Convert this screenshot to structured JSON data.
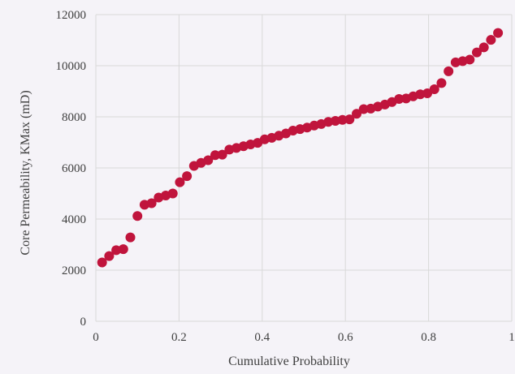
{
  "chart_data": {
    "type": "scatter",
    "title": "",
    "xlabel": "Cumulative Probability",
    "ylabel": "Core Permeability, KMax (mD)",
    "xlim": [
      0,
      1
    ],
    "ylim": [
      0,
      12000
    ],
    "x_ticks": [
      "0",
      "0.2",
      "0.4",
      "0.6",
      "0.8",
      "1"
    ],
    "y_ticks": [
      "0",
      "2000",
      "4000",
      "6000",
      "8000",
      "10000",
      "12000"
    ],
    "grid": true,
    "legend": "none",
    "marker_color": "#c0143c",
    "x": [
      0.015,
      0.032,
      0.049,
      0.066,
      0.083,
      0.1,
      0.117,
      0.134,
      0.151,
      0.168,
      0.185,
      0.202,
      0.219,
      0.236,
      0.253,
      0.27,
      0.287,
      0.304,
      0.321,
      0.338,
      0.355,
      0.372,
      0.389,
      0.406,
      0.423,
      0.44,
      0.457,
      0.474,
      0.491,
      0.508,
      0.525,
      0.542,
      0.559,
      0.576,
      0.593,
      0.61,
      0.627,
      0.644,
      0.661,
      0.678,
      0.695,
      0.712,
      0.729,
      0.746,
      0.763,
      0.78,
      0.797,
      0.814,
      0.831,
      0.848,
      0.865,
      0.882,
      0.899,
      0.916,
      0.933,
      0.95,
      0.967
    ],
    "values": [
      2300,
      2550,
      2780,
      2820,
      3280,
      4120,
      4560,
      4620,
      4840,
      4920,
      5000,
      5440,
      5680,
      6080,
      6200,
      6300,
      6500,
      6520,
      6720,
      6780,
      6850,
      6920,
      6980,
      7120,
      7180,
      7260,
      7350,
      7460,
      7520,
      7580,
      7660,
      7720,
      7800,
      7840,
      7880,
      7900,
      8120,
      8300,
      8320,
      8400,
      8480,
      8580,
      8700,
      8720,
      8800,
      8880,
      8920,
      9080,
      9320,
      9780,
      10130,
      10180,
      10240,
      10520,
      10720,
      11010,
      11280
    ]
  }
}
